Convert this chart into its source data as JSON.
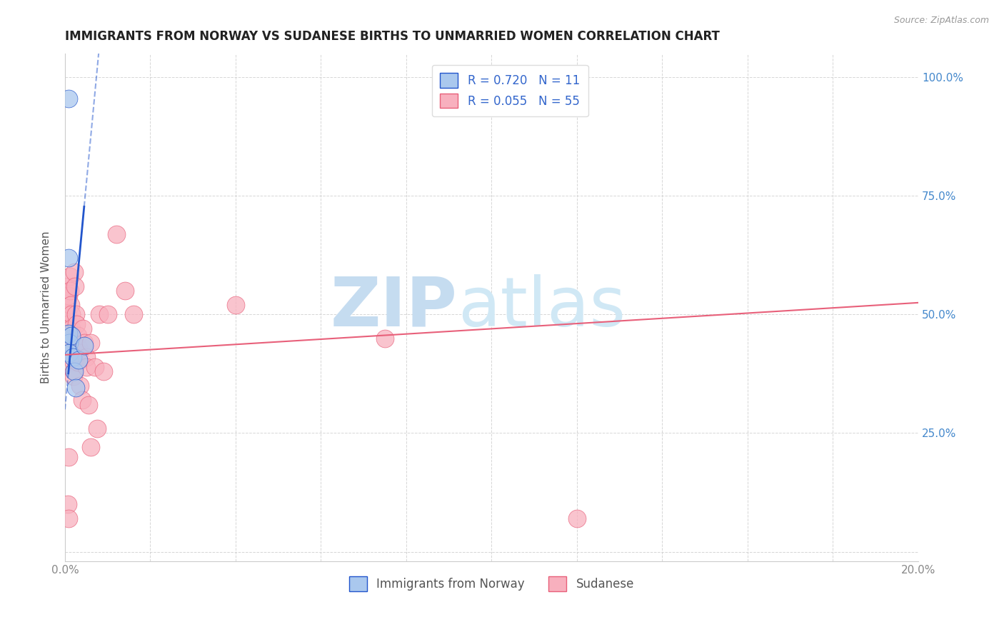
{
  "title": "IMMIGRANTS FROM NORWAY VS SUDANESE BIRTHS TO UNMARRIED WOMEN CORRELATION CHART",
  "source": "Source: ZipAtlas.com",
  "ylabel": "Births to Unmarried Women",
  "xlim": [
    0.0,
    0.2
  ],
  "ylim": [
    -0.02,
    1.05
  ],
  "xticks": [
    0.0,
    0.02,
    0.04,
    0.06,
    0.08,
    0.1,
    0.12,
    0.14,
    0.16,
    0.18,
    0.2
  ],
  "xticklabels": [
    "0.0%",
    "",
    "",
    "",
    "",
    "",
    "",
    "",
    "",
    "",
    "20.0%"
  ],
  "yticks": [
    0.0,
    0.25,
    0.5,
    0.75,
    1.0
  ],
  "yticklabels": [
    "",
    "25.0%",
    "50.0%",
    "75.0%",
    "100.0%"
  ],
  "norway_R": 0.72,
  "norway_N": 11,
  "sudanese_R": 0.055,
  "sudanese_N": 55,
  "norway_color": "#aac8ee",
  "norway_line_color": "#2255cc",
  "sudanese_color": "#f8b0be",
  "sudanese_line_color": "#e8607a",
  "norway_x": [
    0.0008,
    0.0008,
    0.0009,
    0.001,
    0.001,
    0.0015,
    0.0018,
    0.0022,
    0.0025,
    0.0032,
    0.0045
  ],
  "norway_y": [
    0.955,
    0.62,
    0.46,
    0.44,
    0.42,
    0.455,
    0.41,
    0.38,
    0.345,
    0.405,
    0.435
  ],
  "sudanese_x": [
    0.0005,
    0.0006,
    0.0007,
    0.0008,
    0.0008,
    0.0009,
    0.0009,
    0.001,
    0.001,
    0.001,
    0.001,
    0.0012,
    0.0012,
    0.0014,
    0.0015,
    0.0015,
    0.0016,
    0.0017,
    0.0017,
    0.0018,
    0.002,
    0.002,
    0.002,
    0.0022,
    0.0023,
    0.0025,
    0.0027,
    0.003,
    0.003,
    0.003,
    0.0032,
    0.0033,
    0.0035,
    0.004,
    0.0042,
    0.0045,
    0.005,
    0.005,
    0.0055,
    0.006,
    0.006,
    0.007,
    0.0075,
    0.008,
    0.009,
    0.01,
    0.012,
    0.014,
    0.016,
    0.04,
    0.0006,
    0.0008,
    0.0009,
    0.12,
    0.075
  ],
  "sudanese_y": [
    0.53,
    0.5,
    0.56,
    0.54,
    0.48,
    0.47,
    0.46,
    0.45,
    0.44,
    0.43,
    0.42,
    0.58,
    0.55,
    0.52,
    0.5,
    0.47,
    0.46,
    0.43,
    0.42,
    0.41,
    0.4,
    0.38,
    0.37,
    0.59,
    0.56,
    0.5,
    0.48,
    0.455,
    0.42,
    0.4,
    0.43,
    0.42,
    0.35,
    0.32,
    0.47,
    0.44,
    0.41,
    0.39,
    0.31,
    0.22,
    0.44,
    0.39,
    0.26,
    0.5,
    0.38,
    0.5,
    0.67,
    0.55,
    0.5,
    0.52,
    0.1,
    0.07,
    0.2,
    0.07,
    0.45
  ],
  "norway_line_m": 95.0,
  "norway_line_b": 0.3,
  "sudanese_line_m": 0.55,
  "sudanese_line_b": 0.415,
  "watermark_zip": "ZIP",
  "watermark_atlas": "atlas",
  "watermark_color": "#daeaf8",
  "legend_norway_label": "Immigrants from Norway",
  "legend_sudanese_label": "Sudanese",
  "background_color": "#ffffff",
  "grid_color": "#cccccc"
}
